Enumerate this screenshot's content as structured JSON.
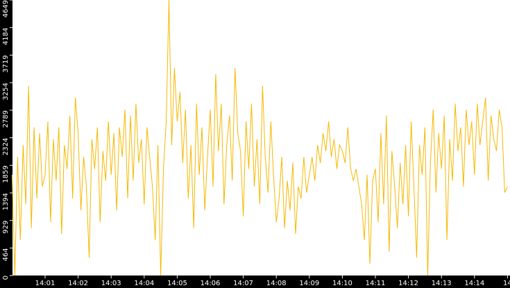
{
  "chart_data": {
    "type": "line",
    "color": "#f5b800",
    "ylim": [
      0,
      4649
    ],
    "yticks": [
      0,
      464,
      929,
      1394,
      1859,
      2324,
      2789,
      3254,
      3719,
      4184,
      4649
    ],
    "categories": [
      null,
      null,
      null,
      null,
      null,
      null,
      null,
      null,
      null,
      null,
      null,
      null,
      "14:01",
      null,
      null,
      null,
      null,
      null,
      null,
      null,
      null,
      null,
      null,
      null,
      "14:02",
      null,
      null,
      null,
      null,
      null,
      null,
      null,
      null,
      null,
      null,
      null,
      "14:03",
      null,
      null,
      null,
      null,
      null,
      null,
      null,
      null,
      null,
      null,
      null,
      "14:04",
      null,
      null,
      null,
      null,
      null,
      null,
      null,
      null,
      null,
      null,
      null,
      "14:05",
      null,
      null,
      null,
      null,
      null,
      null,
      null,
      null,
      null,
      null,
      null,
      "14:06",
      null,
      null,
      null,
      null,
      null,
      null,
      null,
      null,
      null,
      null,
      null,
      "14:07",
      null,
      null,
      null,
      null,
      null,
      null,
      null,
      null,
      null,
      null,
      null,
      "14:08",
      null,
      null,
      null,
      null,
      null,
      null,
      null,
      null,
      null,
      null,
      null,
      "14:09",
      null,
      null,
      null,
      null,
      null,
      null,
      null,
      null,
      null,
      null,
      null,
      "14:10",
      null,
      null,
      null,
      null,
      null,
      null,
      null,
      null,
      null,
      null,
      null,
      "14:11",
      null,
      null,
      null,
      null,
      null,
      null,
      null,
      null,
      null,
      null,
      null,
      "14:12",
      null,
      null,
      null,
      null,
      null,
      null,
      null,
      null,
      null,
      null,
      null,
      "14:13",
      null,
      null,
      null,
      null,
      null,
      null,
      null,
      null,
      null,
      null,
      null,
      "14:14",
      null,
      null,
      null,
      null,
      null,
      null,
      null,
      null,
      null,
      null,
      null,
      "14"
    ],
    "values": [
      1700,
      0,
      2000,
      600,
      2200,
      1200,
      3200,
      800,
      2500,
      1300,
      2400,
      1500,
      1700,
      2600,
      900,
      2300,
      1600,
      2500,
      700,
      2200,
      1800,
      2700,
      1300,
      3000,
      2400,
      1100,
      2000,
      1500,
      300,
      2300,
      1800,
      2500,
      900,
      2100,
      1600,
      2600,
      1700,
      2400,
      1100,
      2500,
      2000,
      2800,
      1300,
      2700,
      1600,
      2900,
      1900,
      2300,
      1200,
      2500,
      2000,
      1500,
      600,
      2200,
      0,
      1800,
      2600,
      4649,
      2200,
      3500,
      2600,
      3100,
      1900,
      2800,
      1300,
      2200,
      800,
      2900,
      1700,
      2500,
      1100,
      2000,
      2800,
      1500,
      3400,
      2100,
      2900,
      1200,
      2200,
      2700,
      1600,
      3500,
      2400,
      2100,
      1000,
      2600,
      1800,
      2900,
      1500,
      2300,
      1200,
      3200,
      2000,
      1400,
      2600,
      1700,
      900,
      1300,
      2000,
      800,
      1600,
      1100,
      1900,
      700,
      1500,
      1300,
      2000,
      1400,
      1700,
      2000,
      1600,
      2200,
      1900,
      2400,
      2100,
      2600,
      2000,
      2300,
      1800,
      2200,
      2100,
      1900,
      2500,
      1800,
      1600,
      1800,
      1500,
      1200,
      600,
      1700,
      200,
      1600,
      1800,
      900,
      2400,
      1200,
      2700,
      400,
      2100,
      1500,
      800,
      1900,
      1200,
      2200,
      1000,
      2600,
      1500,
      300,
      2200,
      1700,
      2500,
      0,
      1900,
      2800,
      1400,
      2400,
      1800,
      2700,
      600,
      2300,
      1600,
      2900,
      2100,
      2500,
      1500,
      2800,
      2200,
      2600,
      1700,
      2900,
      2200,
      2600,
      3000,
      1600,
      2700,
      2300,
      2100,
      2800,
      2500,
      1400,
      1500
    ]
  }
}
